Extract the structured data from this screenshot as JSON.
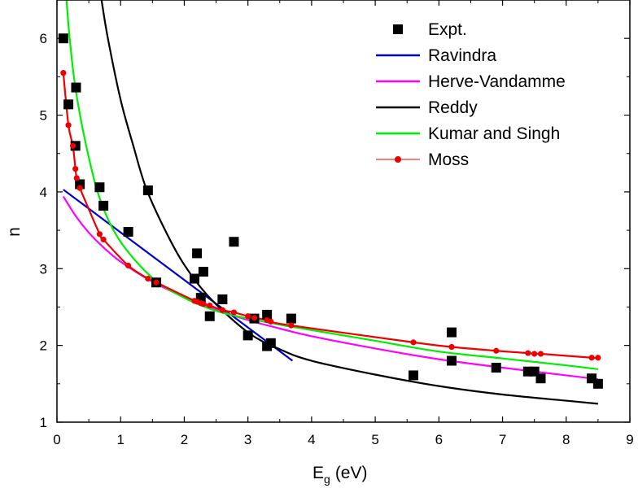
{
  "chart_data": {
    "type": "scatter",
    "xlabel": "E",
    "xlabel_sub": "g",
    "xlabel_unit": "(eV)",
    "ylabel": "n",
    "xlim": [
      0,
      9
    ],
    "ylim": [
      1,
      6.5
    ],
    "x_ticks": [
      "0",
      "1",
      "2",
      "3",
      "4",
      "5",
      "6",
      "7",
      "8",
      "9"
    ],
    "y_ticks": [
      "1",
      "2",
      "3",
      "4",
      "5",
      "6"
    ],
    "grid": false,
    "legend_position": "top-right",
    "series": [
      {
        "name": "Expt.",
        "kind": "markers",
        "marker": "square",
        "color": "#000000",
        "points": [
          [
            0.1,
            6.0
          ],
          [
            0.18,
            5.14
          ],
          [
            0.3,
            5.36
          ],
          [
            0.29,
            4.6
          ],
          [
            0.36,
            4.1
          ],
          [
            0.67,
            4.06
          ],
          [
            0.73,
            3.82
          ],
          [
            1.12,
            3.48
          ],
          [
            1.43,
            4.02
          ],
          [
            1.56,
            2.82
          ],
          [
            2.16,
            2.87
          ],
          [
            2.2,
            3.2
          ],
          [
            2.26,
            2.62
          ],
          [
            2.3,
            2.96
          ],
          [
            2.4,
            2.38
          ],
          [
            2.6,
            2.6
          ],
          [
            2.78,
            3.35
          ],
          [
            3.0,
            2.13
          ],
          [
            3.1,
            2.35
          ],
          [
            3.3,
            2.4
          ],
          [
            3.3,
            1.99
          ],
          [
            3.36,
            2.03
          ],
          [
            3.68,
            2.35
          ],
          [
            5.6,
            1.61
          ],
          [
            6.2,
            2.17
          ],
          [
            6.2,
            1.8
          ],
          [
            6.9,
            1.71
          ],
          [
            7.4,
            1.66
          ],
          [
            7.5,
            1.66
          ],
          [
            7.6,
            1.57
          ],
          [
            8.4,
            1.57
          ],
          [
            8.5,
            1.5
          ]
        ]
      },
      {
        "name": "Ravindra",
        "kind": "line",
        "color": "#0000cc",
        "points": [
          [
            0.1,
            4.03
          ],
          [
            3.7,
            1.8
          ]
        ]
      },
      {
        "name": "Herve-Vandamme",
        "kind": "line",
        "color": "#ff00ff",
        "points": [
          [
            0.1,
            3.94
          ],
          [
            0.3,
            3.68
          ],
          [
            0.5,
            3.47
          ],
          [
            0.7,
            3.3
          ],
          [
            1.0,
            3.09
          ],
          [
            1.5,
            2.83
          ],
          [
            2.0,
            2.63
          ],
          [
            2.5,
            2.47
          ],
          [
            3.0,
            2.33
          ],
          [
            3.5,
            2.22
          ],
          [
            4.0,
            2.12
          ],
          [
            5.0,
            1.96
          ],
          [
            6.0,
            1.82
          ],
          [
            7.0,
            1.71
          ],
          [
            8.0,
            1.61
          ],
          [
            8.5,
            1.56
          ]
        ]
      },
      {
        "name": "Reddy",
        "kind": "line",
        "color": "#000000",
        "points": [
          [
            0.7,
            6.5
          ],
          [
            0.8,
            6.0
          ],
          [
            1.0,
            5.2
          ],
          [
            1.2,
            4.6
          ],
          [
            1.4,
            4.05
          ],
          [
            1.7,
            3.5
          ],
          [
            2.0,
            3.05
          ],
          [
            2.4,
            2.62
          ],
          [
            3.0,
            2.17
          ],
          [
            3.5,
            1.95
          ],
          [
            4.0,
            1.8
          ],
          [
            5.0,
            1.62
          ],
          [
            6.0,
            1.47
          ],
          [
            7.0,
            1.36
          ],
          [
            8.0,
            1.28
          ],
          [
            8.5,
            1.24
          ]
        ]
      },
      {
        "name": "Kumar and Singh",
        "kind": "line",
        "color": "#00ee00",
        "points": [
          [
            0.15,
            6.5
          ],
          [
            0.2,
            6.0
          ],
          [
            0.3,
            5.3
          ],
          [
            0.5,
            4.45
          ],
          [
            0.7,
            3.85
          ],
          [
            1.0,
            3.35
          ],
          [
            1.5,
            2.88
          ],
          [
            2.0,
            2.62
          ],
          [
            2.5,
            2.45
          ],
          [
            3.0,
            2.35
          ],
          [
            3.5,
            2.27
          ],
          [
            4.0,
            2.2
          ],
          [
            5.0,
            2.06
          ],
          [
            6.0,
            1.92
          ],
          [
            7.0,
            1.83
          ],
          [
            8.0,
            1.74
          ],
          [
            8.5,
            1.69
          ]
        ]
      },
      {
        "name": "Moss",
        "kind": "line-markers",
        "marker": "circle",
        "color": "#ee0000",
        "points": [
          [
            0.1,
            5.55
          ],
          [
            0.18,
            4.87
          ],
          [
            0.25,
            4.6
          ],
          [
            0.29,
            4.3
          ],
          [
            0.31,
            4.18
          ],
          [
            0.36,
            4.05
          ],
          [
            0.67,
            3.45
          ],
          [
            0.73,
            3.38
          ],
          [
            1.12,
            3.04
          ],
          [
            1.43,
            2.87
          ],
          [
            1.56,
            2.82
          ],
          [
            2.16,
            2.58
          ],
          [
            2.2,
            2.57
          ],
          [
            2.26,
            2.55
          ],
          [
            2.3,
            2.54
          ],
          [
            2.4,
            2.52
          ],
          [
            2.6,
            2.46
          ],
          [
            2.78,
            2.43
          ],
          [
            3.0,
            2.38
          ],
          [
            3.1,
            2.36
          ],
          [
            3.3,
            2.33
          ],
          [
            3.36,
            2.31
          ],
          [
            3.68,
            2.26
          ],
          [
            5.6,
            2.04
          ],
          [
            6.2,
            1.98
          ],
          [
            6.9,
            1.93
          ],
          [
            7.4,
            1.9
          ],
          [
            7.5,
            1.89
          ],
          [
            7.6,
            1.89
          ],
          [
            8.4,
            1.84
          ],
          [
            8.5,
            1.84
          ]
        ]
      }
    ]
  }
}
